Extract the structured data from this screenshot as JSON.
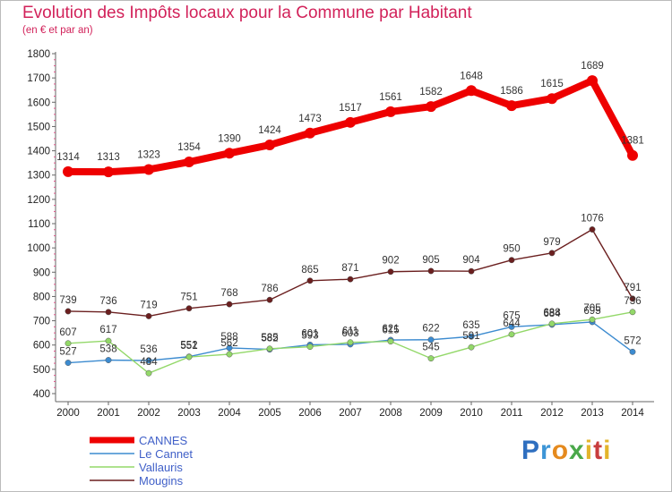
{
  "chart_data": {
    "type": "line",
    "title": "Evolution des Impôts locaux pour la Commune par Habitant",
    "subtitle": "(en € et par an)",
    "x": [
      "2000",
      "2001",
      "2002",
      "2003",
      "2004",
      "2005",
      "2006",
      "2007",
      "2008",
      "2009",
      "2010",
      "2011",
      "2012",
      "2013",
      "2014"
    ],
    "ylim": [
      400,
      1800
    ],
    "yticks": [
      400,
      500,
      600,
      700,
      800,
      900,
      1000,
      1100,
      1200,
      1300,
      1400,
      1500,
      1600,
      1700,
      1800
    ],
    "grid": false,
    "legend_position": "bottom-left",
    "series": [
      {
        "name": "CANNES",
        "color": "#ee0000",
        "values": [
          1314,
          1313,
          1323,
          1354,
          1390,
          1424,
          1473,
          1517,
          1561,
          1582,
          1648,
          1586,
          1615,
          1689,
          1381
        ]
      },
      {
        "name": "Le Cannet",
        "color": "#3c8bd0",
        "values": [
          527,
          538,
          536,
          552,
          588,
          582,
          601,
          603,
          621,
          622,
          635,
          675,
          684,
          695,
          572
        ]
      },
      {
        "name": "Vallauris",
        "color": "#93d869",
        "values": [
          607,
          617,
          484,
          551,
          562,
          585,
          593,
          611,
          615,
          545,
          591,
          644,
          688,
          705,
          736
        ]
      },
      {
        "name": "Mougins",
        "color": "#6b1f1f",
        "values": [
          739,
          736,
          719,
          751,
          768,
          786,
          865,
          871,
          902,
          905,
          904,
          950,
          979,
          1076,
          791
        ]
      }
    ]
  },
  "logo": {
    "letters": [
      "P",
      "r",
      "o",
      "x",
      "i",
      "t",
      "i"
    ]
  }
}
